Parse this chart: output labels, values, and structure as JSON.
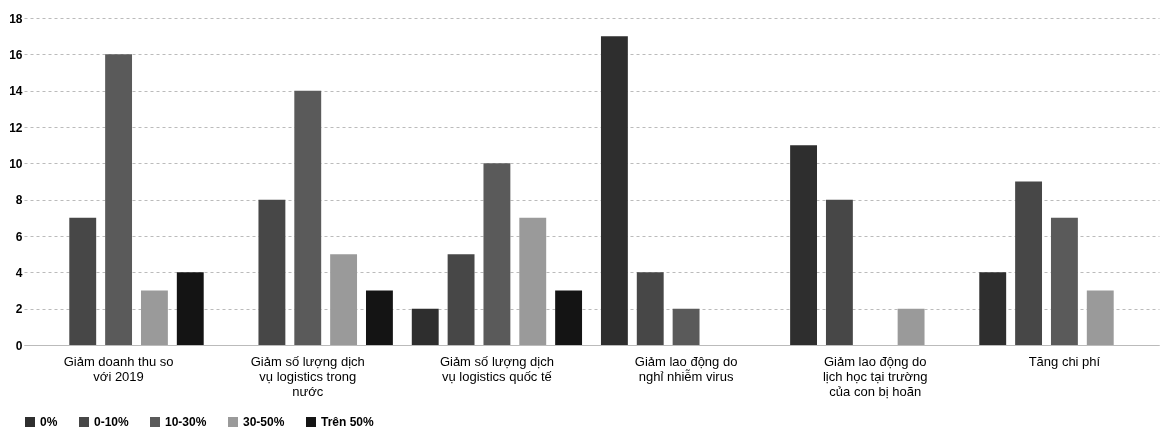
{
  "chart_data": {
    "type": "bar",
    "categories": [
      "Giảm doanh thu so với 2019",
      "Giảm số lượng dịch vụ logistics trong nước",
      "Giảm số lượng dịch vụ logistics quốc tế",
      "Giảm lao động do nghỉ nhiễm virus",
      "Giảm lao động do lịch học tại trường của con bị hoãn",
      "Tăng chi phí"
    ],
    "series": [
      {
        "name": "0%",
        "color": "#2e2e2e",
        "values": [
          0,
          0,
          2,
          17,
          11,
          4
        ]
      },
      {
        "name": "0-10%",
        "color": "#474747",
        "values": [
          7,
          8,
          5,
          4,
          8,
          9
        ]
      },
      {
        "name": "10-30%",
        "color": "#5a5a5a",
        "values": [
          16,
          14,
          10,
          2,
          0,
          7
        ]
      },
      {
        "name": "30-50%",
        "color": "#9a9a9a",
        "values": [
          3,
          5,
          7,
          0,
          2,
          3
        ]
      },
      {
        "name": "Trên 50%",
        "color": "#141414",
        "values": [
          4,
          3,
          3,
          0,
          0,
          0
        ]
      }
    ],
    "ylim": [
      0,
      18
    ],
    "yticks": [
      0,
      2,
      4,
      6,
      8,
      10,
      12,
      14,
      16,
      18
    ],
    "grid": "y",
    "legend": "bottom"
  }
}
